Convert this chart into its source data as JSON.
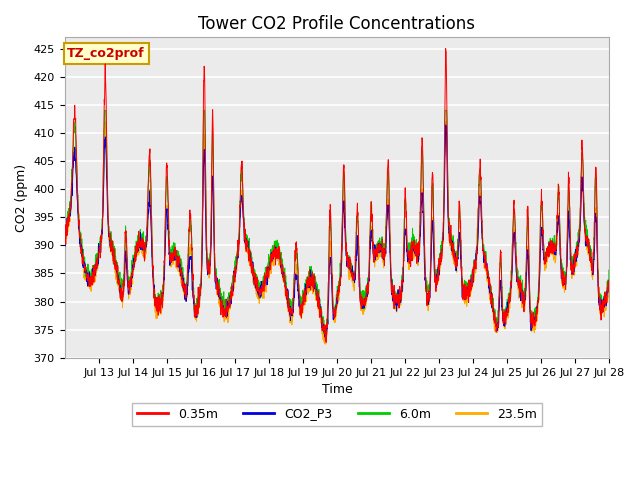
{
  "title": "Tower CO2 Profile Concentrations",
  "xlabel": "Time",
  "ylabel": "CO2 (ppm)",
  "ylim": [
    370,
    427
  ],
  "yticks": [
    370,
    375,
    380,
    385,
    390,
    395,
    400,
    405,
    410,
    415,
    420,
    425
  ],
  "xtick_labels": [
    "Jul 13",
    "Jul 14",
    "Jul 15",
    "Jul 16",
    "Jul 17",
    "Jul 18",
    "Jul 19",
    "Jul 20",
    "Jul 21",
    "Jul 22",
    "Jul 23",
    "Jul 24",
    "Jul 25",
    "Jul 26",
    "Jul 27",
    "Jul 28"
  ],
  "series": [
    {
      "label": "0.35m",
      "color": "#ff0000",
      "zorder": 4,
      "lw": 0.7
    },
    {
      "label": "CO2_P3",
      "color": "#0000dd",
      "zorder": 3,
      "lw": 0.7
    },
    {
      "label": "6.0m",
      "color": "#00cc00",
      "zorder": 2,
      "lw": 0.7
    },
    {
      "label": "23.5m",
      "color": "#ffaa00",
      "zorder": 1,
      "lw": 0.7
    }
  ],
  "annotation_text": "TZ_co2prof",
  "annotation_color": "#cc0000",
  "annotation_bg": "#ffffcc",
  "annotation_border": "#cc9900",
  "bg_color": "#ebebeb",
  "grid_color": "#ffffff",
  "title_fontsize": 12,
  "tick_fontsize": 8,
  "axis_label_fontsize": 9,
  "legend_fontsize": 9
}
